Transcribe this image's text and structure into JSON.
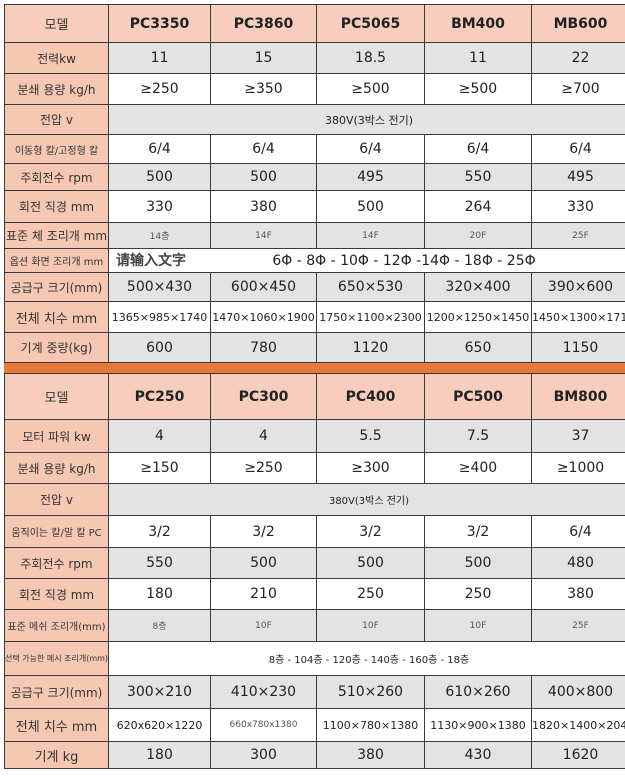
{
  "watermark": "请输入文字",
  "tables": [
    {
      "header": {
        "label": "모델",
        "models": [
          "PC3350",
          "PC3860",
          "PC5065",
          "BM400",
          "MB600"
        ]
      },
      "rows": [
        {
          "label": "전력kw",
          "cells": [
            "11",
            "15",
            "18.5",
            "11",
            "22"
          ]
        },
        {
          "label": "분쇄 용량 kg/h",
          "cells": [
            "≥250",
            "≥350",
            "≥500",
            "≥500",
            "≥700"
          ]
        },
        {
          "label": "전압 v",
          "merged": "380V(3박스 전기)"
        },
        {
          "label": "이동형 칼/고정형 칼",
          "cells": [
            "6/4",
            "6/4",
            "6/4",
            "6/4",
            "6/4"
          ]
        },
        {
          "label": "주회전수 rpm",
          "cells": [
            "500",
            "500",
            "495",
            "550",
            "495"
          ]
        },
        {
          "label": "회전 직경 mm",
          "cells": [
            "330",
            "380",
            "500",
            "264",
            "330"
          ]
        },
        {
          "label": "표준 체 조리개 mm",
          "cells": [
            "14층",
            "14F",
            "14F",
            "20F",
            "25F"
          ]
        },
        {
          "label": "옵션 화면 조리개 mm",
          "merged": "6Φ  -  8Φ - 10Φ - 12Φ -14Φ - 18Φ - 25Φ"
        },
        {
          "label": "공급구 크기(mm)",
          "cells": [
            "500×430",
            "600×450",
            "650×530",
            "320×400",
            "390×600"
          ]
        },
        {
          "label": "전체 치수 mm",
          "cells": [
            "1365×985×1740",
            "1470×1060×1900",
            "1750×1100×2300",
            "1200×1250×1450",
            "1450×1300×1710"
          ]
        },
        {
          "label": "기계 중량(kg)",
          "cells": [
            "600",
            "780",
            "1120",
            "650",
            "1150"
          ]
        }
      ]
    },
    {
      "header": {
        "label": "모델",
        "models": [
          "PC250",
          "PC300",
          "PC400",
          "PC500",
          "BM800"
        ]
      },
      "rows": [
        {
          "label": "모터 파워 kw",
          "cells": [
            "4",
            "4",
            "5.5",
            "7.5",
            "37"
          ]
        },
        {
          "label": "분쇄 용량 kg/h",
          "cells": [
            "≥150",
            "≥250",
            "≥300",
            "≥400",
            "≥1000"
          ]
        },
        {
          "label": "전압 v",
          "merged": "380V(3박스 전기)"
        },
        {
          "label": "움직이는 칼/말 칼 PC",
          "cells": [
            "3/2",
            "3/2",
            "3/2",
            "3/2",
            "6/4"
          ]
        },
        {
          "label": "주회전수 rpm",
          "cells": [
            "550",
            "500",
            "500",
            "500",
            "480"
          ]
        },
        {
          "label": "회전 직경 mm",
          "cells": [
            "180",
            "210",
            "250",
            "250",
            "380"
          ]
        },
        {
          "label": "표준 메쉬 조리개(mm)",
          "cells": [
            "8층",
            "10F",
            "10F",
            "10F",
            "25F"
          ]
        },
        {
          "label": "선택 가능한 메시 조리개(mm)",
          "merged": "8층 - 104층 - 120층 - 140층 - 160층 - 18층"
        },
        {
          "label": "공급구 크기(mm)",
          "cells": [
            "300×210",
            "410×230",
            "510×260",
            "610×260",
            "400×800"
          ]
        },
        {
          "label": "전체 치수 mm",
          "cells": [
            "620x620×1220",
            "660x780x1380",
            "1100×780×1380",
            "1130×900×1380",
            "1820×1400×2040"
          ]
        },
        {
          "label": "기계 kg",
          "cells": [
            "180",
            "300",
            "380",
            "430",
            "1620"
          ]
        }
      ]
    }
  ]
}
